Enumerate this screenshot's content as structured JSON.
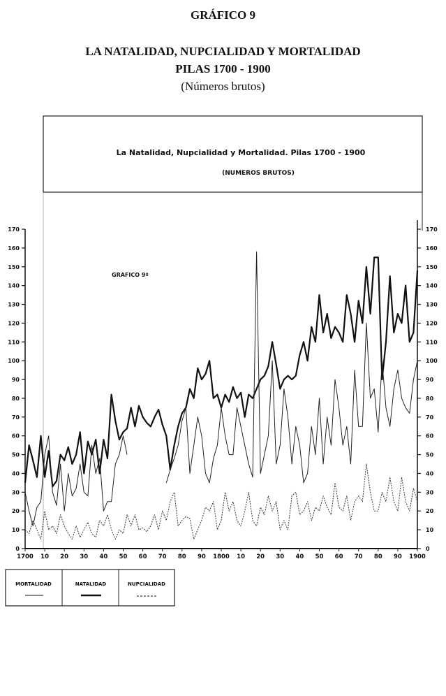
{
  "header": {
    "figure_label": "GRÁFICO 9",
    "title_line1": "LA NATALIDAD, NUPCIALIDAD Y MORTALIDAD",
    "title_line2": "PILAS  1700 - 1900",
    "title_line3": "(Números brutos)"
  },
  "chart_data": {
    "type": "line",
    "title": "La Natalidad, Nupcialidad y Mortalidad.   Pilas 1700 - 1900",
    "subtitle": "(NUMEROS BRUTOS)",
    "annotation": "GRAFICO 9º",
    "xlabel": "",
    "ylabel": "",
    "xlim": [
      1700,
      1900
    ],
    "ylim": [
      0,
      170
    ],
    "grid": false,
    "legend_position": "bottom-left",
    "y_ticks": [
      "0",
      "10",
      "20",
      "30",
      "40",
      "50",
      "60",
      "70",
      "80",
      "90",
      "100",
      "110",
      "120",
      "130",
      "140",
      "150",
      "160",
      "170"
    ],
    "x_ticks": [
      {
        "year": 1700,
        "label": "1700"
      },
      {
        "year": 1710,
        "label": "10"
      },
      {
        "year": 1720,
        "label": "20"
      },
      {
        "year": 1730,
        "label": "30"
      },
      {
        "year": 1740,
        "label": "40"
      },
      {
        "year": 1750,
        "label": "50"
      },
      {
        "year": 1760,
        "label": "60"
      },
      {
        "year": 1770,
        "label": "70"
      },
      {
        "year": 1780,
        "label": "80"
      },
      {
        "year": 1790,
        "label": "90"
      },
      {
        "year": 1800,
        "label": "1800"
      },
      {
        "year": 1810,
        "label": "10"
      },
      {
        "year": 1820,
        "label": "20"
      },
      {
        "year": 1830,
        "label": "30"
      },
      {
        "year": 1840,
        "label": "40"
      },
      {
        "year": 1850,
        "label": "50"
      },
      {
        "year": 1860,
        "label": "60"
      },
      {
        "year": 1870,
        "label": "70"
      },
      {
        "year": 1880,
        "label": "80"
      },
      {
        "year": 1890,
        "label": "90"
      },
      {
        "year": 1900,
        "label": "1900"
      }
    ],
    "x_start": 1700,
    "x_step": 2,
    "series": [
      {
        "name": "NATALIDAD",
        "style": "thick",
        "values": [
          35,
          55,
          47,
          38,
          60,
          38,
          52,
          33,
          36,
          50,
          47,
          54,
          45,
          50,
          62,
          40,
          57,
          50,
          58,
          40,
          58,
          48,
          82,
          68,
          58,
          62,
          64,
          75,
          65,
          76,
          70,
          67,
          65,
          70,
          74,
          66,
          60,
          42,
          55,
          65,
          72,
          75,
          85,
          80,
          96,
          90,
          93,
          100,
          80,
          82,
          75,
          82,
          78,
          86,
          80,
          83,
          70,
          82,
          80,
          85,
          90,
          92,
          97,
          110,
          98,
          85,
          90,
          92,
          90,
          92,
          103,
          110,
          100,
          118,
          110,
          135,
          115,
          125,
          112,
          118,
          115,
          110,
          135,
          125,
          110,
          132,
          120,
          150,
          125,
          155,
          155,
          90,
          110,
          145,
          115,
          125,
          120,
          140,
          110,
          115,
          148
        ]
      },
      {
        "name": "MORTALIDAD",
        "style": "thin",
        "values": [
          30,
          20,
          12,
          22,
          25,
          50,
          60,
          30,
          23,
          45,
          20,
          40,
          28,
          32,
          45,
          30,
          28,
          55,
          40,
          48,
          20,
          25,
          25,
          45,
          50,
          60,
          50,
          null,
          null,
          null,
          null,
          null,
          null,
          null,
          null,
          null,
          35,
          42,
          48,
          55,
          68,
          75,
          40,
          55,
          70,
          60,
          40,
          35,
          48,
          55,
          75,
          60,
          50,
          50,
          75,
          65,
          55,
          45,
          38,
          158,
          40,
          50,
          60,
          100,
          45,
          55,
          85,
          70,
          45,
          65,
          55,
          35,
          40,
          65,
          50,
          80,
          45,
          70,
          55,
          90,
          75,
          55,
          65,
          45,
          95,
          65,
          65,
          120,
          80,
          85,
          62,
          100,
          75,
          65,
          85,
          95,
          80,
          75,
          72,
          90,
          100
        ]
      },
      {
        "name": "NUPCIALIDAD",
        "style": "dashed",
        "values": [
          10,
          8,
          15,
          10,
          5,
          20,
          10,
          12,
          8,
          18,
          12,
          8,
          5,
          12,
          6,
          10,
          14,
          8,
          6,
          15,
          12,
          18,
          10,
          5,
          10,
          8,
          18,
          12,
          18,
          10,
          11,
          9,
          12,
          18,
          10,
          20,
          15,
          25,
          30,
          12,
          15,
          17,
          16,
          5,
          10,
          15,
          22,
          20,
          25,
          10,
          15,
          30,
          20,
          25,
          15,
          12,
          20,
          30,
          15,
          12,
          22,
          18,
          28,
          20,
          25,
          10,
          15,
          10,
          28,
          30,
          18,
          20,
          25,
          15,
          22,
          20,
          28,
          22,
          18,
          35,
          22,
          20,
          28,
          15,
          25,
          28,
          25,
          45,
          30,
          20,
          20,
          30,
          25,
          38,
          25,
          20,
          38,
          25,
          20,
          32,
          25
        ]
      }
    ],
    "legend": [
      {
        "label": "MORTALIDAD",
        "style": "thin"
      },
      {
        "label": "NATALIDAD",
        "style": "thick"
      },
      {
        "label": "NUPCIALIDAD",
        "style": "dashed"
      }
    ]
  }
}
